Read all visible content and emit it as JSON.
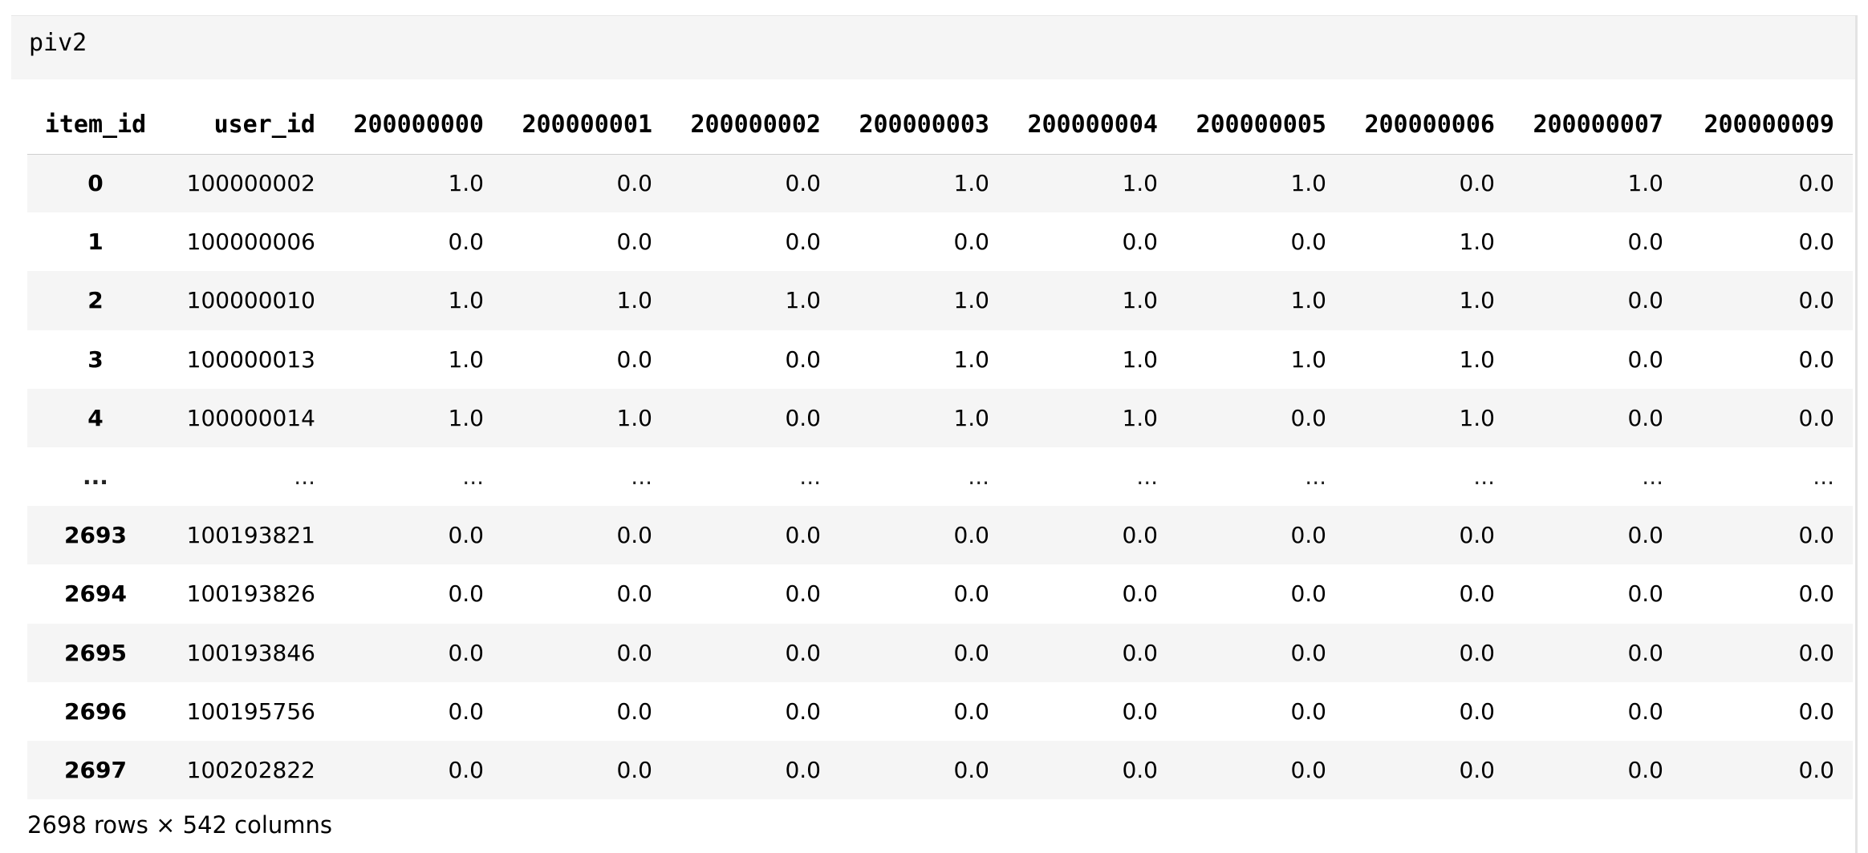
{
  "cell": {
    "code": "piv2"
  },
  "table": {
    "index_name": "item_id",
    "columns": [
      "user_id",
      "200000000",
      "200000001",
      "200000002",
      "200000003",
      "200000004",
      "200000005",
      "200000006",
      "200000007",
      "200000009"
    ],
    "rows": [
      {
        "index": "0",
        "values": [
          "100000002",
          "1.0",
          "0.0",
          "0.0",
          "1.0",
          "1.0",
          "1.0",
          "0.0",
          "1.0",
          "0.0"
        ]
      },
      {
        "index": "1",
        "values": [
          "100000006",
          "0.0",
          "0.0",
          "0.0",
          "0.0",
          "0.0",
          "0.0",
          "1.0",
          "0.0",
          "0.0"
        ]
      },
      {
        "index": "2",
        "values": [
          "100000010",
          "1.0",
          "1.0",
          "1.0",
          "1.0",
          "1.0",
          "1.0",
          "1.0",
          "0.0",
          "0.0"
        ]
      },
      {
        "index": "3",
        "values": [
          "100000013",
          "1.0",
          "0.0",
          "0.0",
          "1.0",
          "1.0",
          "1.0",
          "1.0",
          "0.0",
          "0.0"
        ]
      },
      {
        "index": "4",
        "values": [
          "100000014",
          "1.0",
          "1.0",
          "0.0",
          "1.0",
          "1.0",
          "0.0",
          "1.0",
          "0.0",
          "0.0"
        ]
      },
      {
        "index": "...",
        "values": [
          "...",
          "...",
          "...",
          "...",
          "...",
          "...",
          "...",
          "...",
          "...",
          "..."
        ]
      },
      {
        "index": "2693",
        "values": [
          "100193821",
          "0.0",
          "0.0",
          "0.0",
          "0.0",
          "0.0",
          "0.0",
          "0.0",
          "0.0",
          "0.0"
        ]
      },
      {
        "index": "2694",
        "values": [
          "100193826",
          "0.0",
          "0.0",
          "0.0",
          "0.0",
          "0.0",
          "0.0",
          "0.0",
          "0.0",
          "0.0"
        ]
      },
      {
        "index": "2695",
        "values": [
          "100193846",
          "0.0",
          "0.0",
          "0.0",
          "0.0",
          "0.0",
          "0.0",
          "0.0",
          "0.0",
          "0.0"
        ]
      },
      {
        "index": "2696",
        "values": [
          "100195756",
          "0.0",
          "0.0",
          "0.0",
          "0.0",
          "0.0",
          "0.0",
          "0.0",
          "0.0",
          "0.0"
        ]
      },
      {
        "index": "2697",
        "values": [
          "100202822",
          "0.0",
          "0.0",
          "0.0",
          "0.0",
          "0.0",
          "0.0",
          "0.0",
          "0.0",
          "0.0"
        ]
      }
    ]
  },
  "footer": {
    "shape": "2698 rows × 542 columns"
  }
}
